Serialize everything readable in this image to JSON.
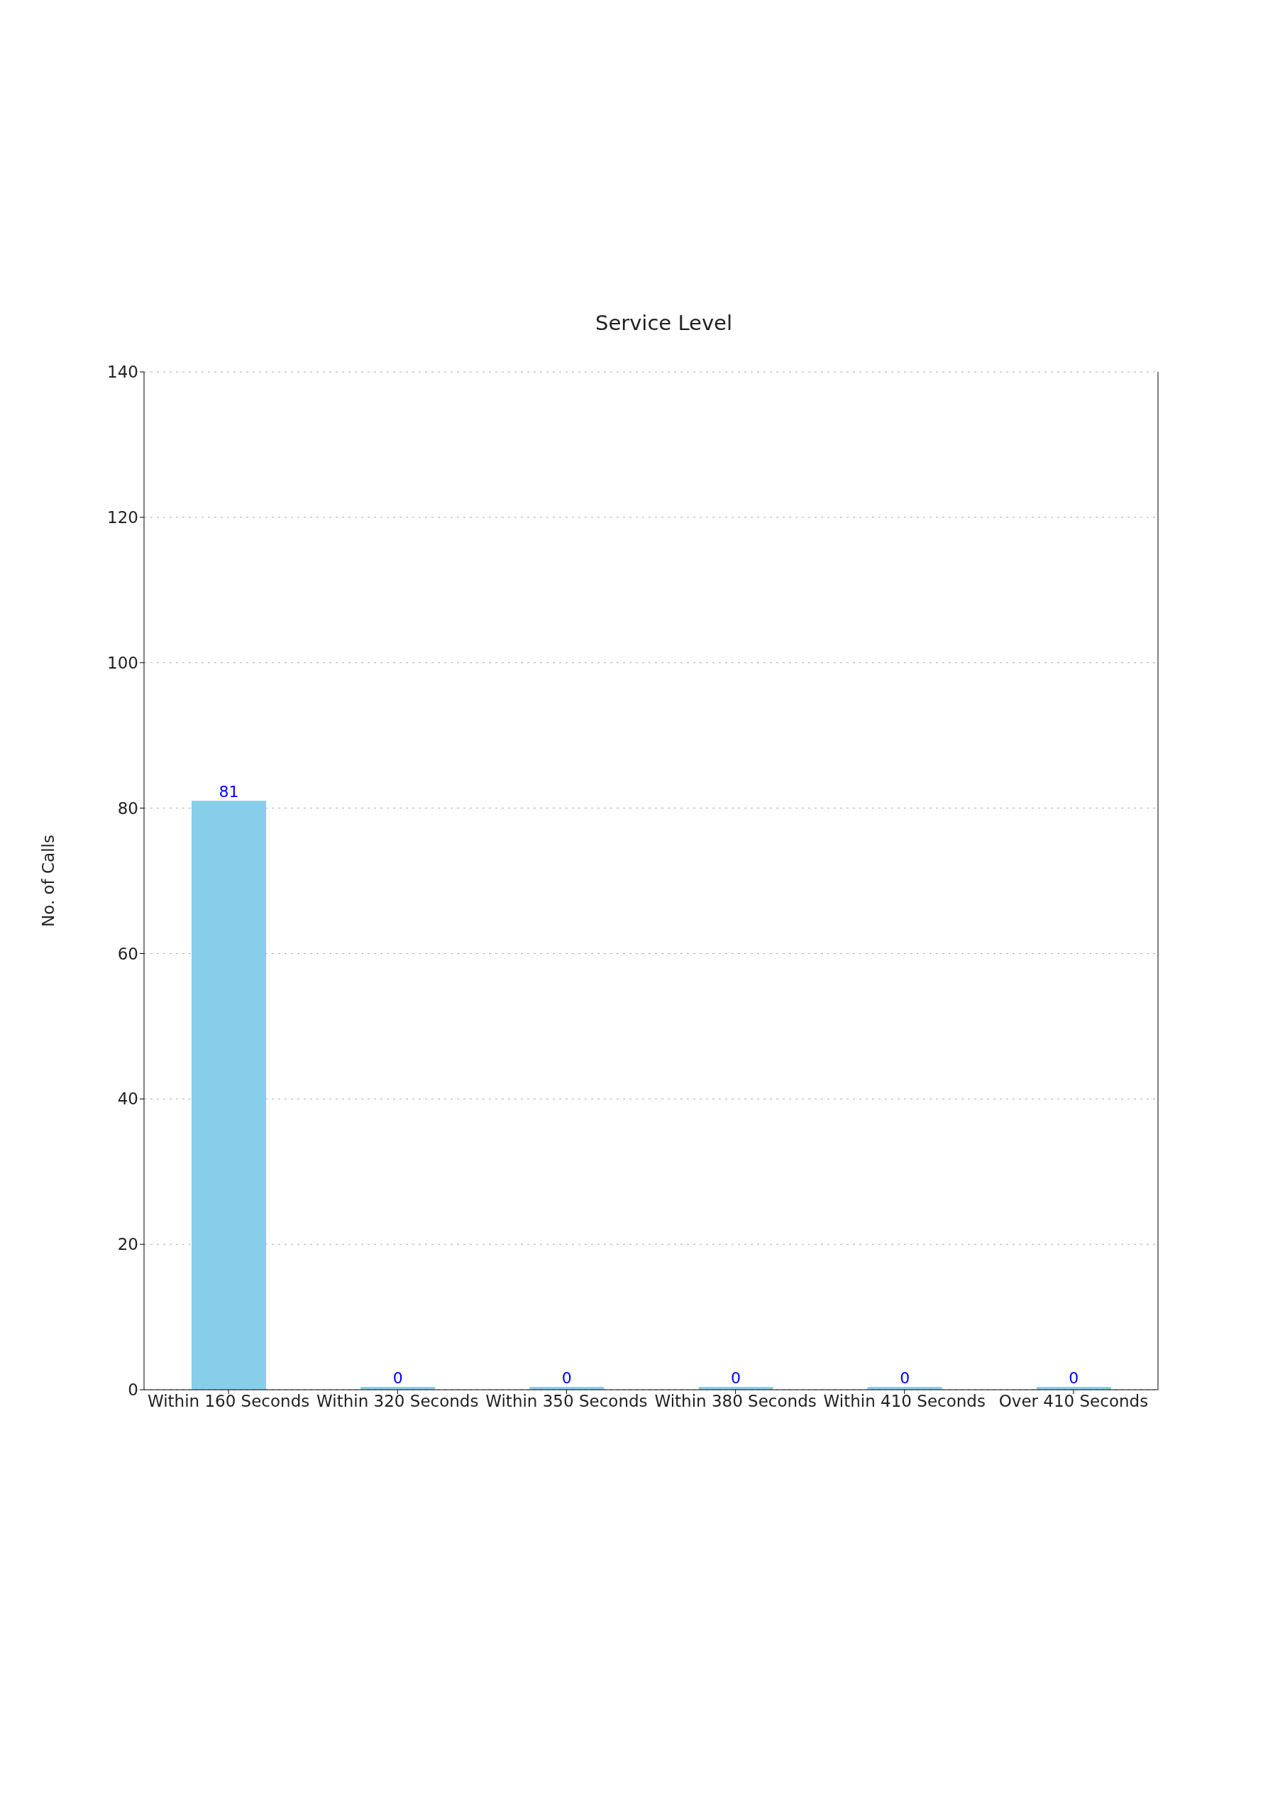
{
  "chart_data": {
    "type": "bar",
    "title": "Service Level",
    "ylabel": "No. of Calls",
    "categories": [
      "Within 160 Seconds",
      "Within 320 Seconds",
      "Within 350 Seconds",
      "Within 380 Seconds",
      "Within 410 Seconds",
      "Over 410 Seconds"
    ],
    "values": [
      81,
      0,
      0,
      0,
      0,
      0
    ],
    "color": "#87ceeb",
    "ylim": [
      0,
      140
    ],
    "yticks": [
      0,
      20,
      40,
      60,
      80,
      100,
      120,
      140
    ],
    "grid": "y",
    "data_labels": true
  }
}
